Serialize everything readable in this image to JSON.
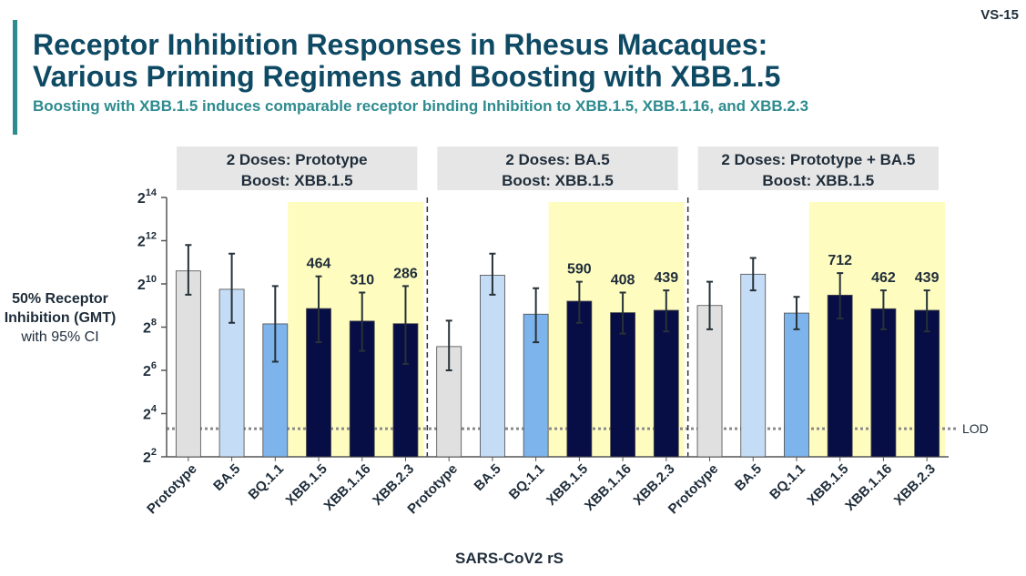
{
  "slide": {
    "id": "VS-15",
    "title_line1": "Receptor Inhibition Responses in Rhesus Macaques:",
    "title_line2": "Various Priming Regimens and Boosting with XBB.1.5",
    "subtitle": "Boosting with XBB.1.5 induces comparable receptor binding Inhibition to XBB.1.5, XBB.1.16, and XBB.2.3"
  },
  "colors": {
    "accent": "#2e8b8f",
    "title": "#0e4a64",
    "prototype": "#e0e0e0",
    "ba5": "#c4dcf5",
    "bq11": "#7eb4ec",
    "xbb": "#070d45",
    "highlight": "#fffcc0",
    "group_header": "#e6e6e6"
  },
  "chart_data": {
    "type": "bar",
    "ylabel_bold": "50% Receptor Inhibition (GMT)",
    "ylabel_note": "with 95% CI",
    "xlabel": "SARS-CoV2 rS",
    "y_scale": "log2",
    "ylim": [
      2,
      14
    ],
    "yticks": [
      {
        "base": "2",
        "exp": "2"
      },
      {
        "base": "2",
        "exp": "4"
      },
      {
        "base": "2",
        "exp": "6"
      },
      {
        "base": "2",
        "exp": "8"
      },
      {
        "base": "2",
        "exp": "10"
      },
      {
        "base": "2",
        "exp": "12"
      },
      {
        "base": "2",
        "exp": "14"
      }
    ],
    "lod": {
      "label": "LOD",
      "log2_value": 3.3
    },
    "categories": [
      "Prototype",
      "BA.5",
      "BQ.1.1",
      "XBB.1.5",
      "XBB.1.16",
      "XBB.2.3"
    ],
    "highlighted_categories": [
      "XBB.1.5",
      "XBB.1.16",
      "XBB.2.3"
    ],
    "groups": [
      {
        "header_line1": "2 Doses: Prototype",
        "header_line2": "Boost: XBB.1.5",
        "bars": [
          {
            "category": "Prototype",
            "log2_value": 10.6,
            "ci_low": 9.5,
            "ci_high": 11.8,
            "label": ""
          },
          {
            "category": "BA.5",
            "log2_value": 9.75,
            "ci_low": 8.2,
            "ci_high": 11.4,
            "label": ""
          },
          {
            "category": "BQ.1.1",
            "log2_value": 8.15,
            "ci_low": 6.4,
            "ci_high": 9.9,
            "label": ""
          },
          {
            "category": "XBB.1.5",
            "log2_value": 8.86,
            "ci_low": 7.3,
            "ci_high": 10.35,
            "label": "464"
          },
          {
            "category": "XBB.1.16",
            "log2_value": 8.28,
            "ci_low": 6.9,
            "ci_high": 9.6,
            "label": "310"
          },
          {
            "category": "XBB.2.3",
            "log2_value": 8.16,
            "ci_low": 6.3,
            "ci_high": 9.9,
            "label": "286"
          }
        ]
      },
      {
        "header_line1": "2 Doses: BA.5",
        "header_line2": "Boost: XBB.1.5",
        "bars": [
          {
            "category": "Prototype",
            "log2_value": 7.1,
            "ci_low": 6.0,
            "ci_high": 8.3,
            "label": ""
          },
          {
            "category": "BA.5",
            "log2_value": 10.4,
            "ci_low": 9.5,
            "ci_high": 11.4,
            "label": ""
          },
          {
            "category": "BQ.1.1",
            "log2_value": 8.6,
            "ci_low": 7.3,
            "ci_high": 9.8,
            "label": ""
          },
          {
            "category": "XBB.1.5",
            "log2_value": 9.2,
            "ci_low": 8.2,
            "ci_high": 10.1,
            "label": "590"
          },
          {
            "category": "XBB.1.16",
            "log2_value": 8.67,
            "ci_low": 7.7,
            "ci_high": 9.6,
            "label": "408"
          },
          {
            "category": "XBB.2.3",
            "log2_value": 8.78,
            "ci_low": 7.8,
            "ci_high": 9.7,
            "label": "439"
          }
        ]
      },
      {
        "header_line1": "2 Doses: Prototype + BA.5",
        "header_line2": "Boost: XBB.1.5",
        "bars": [
          {
            "category": "Prototype",
            "log2_value": 9.0,
            "ci_low": 7.9,
            "ci_high": 10.1,
            "label": ""
          },
          {
            "category": "BA.5",
            "log2_value": 10.45,
            "ci_low": 9.7,
            "ci_high": 11.2,
            "label": ""
          },
          {
            "category": "BQ.1.1",
            "log2_value": 8.65,
            "ci_low": 7.9,
            "ci_high": 9.4,
            "label": ""
          },
          {
            "category": "XBB.1.5",
            "log2_value": 9.48,
            "ci_low": 8.4,
            "ci_high": 10.5,
            "label": "712"
          },
          {
            "category": "XBB.1.16",
            "log2_value": 8.85,
            "ci_low": 7.9,
            "ci_high": 9.7,
            "label": "462"
          },
          {
            "category": "XBB.2.3",
            "log2_value": 8.78,
            "ci_low": 7.8,
            "ci_high": 9.7,
            "label": "439"
          }
        ]
      }
    ]
  }
}
